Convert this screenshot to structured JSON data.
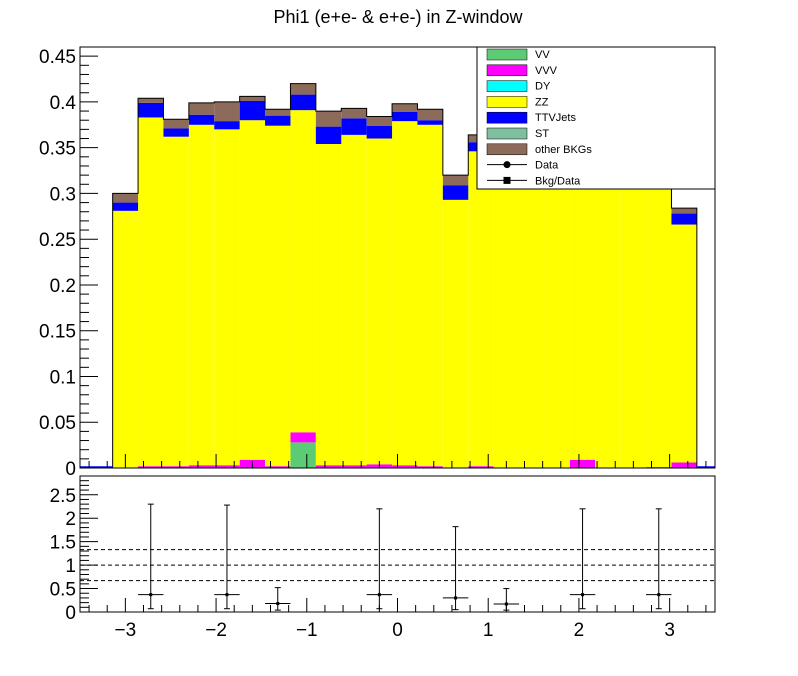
{
  "chart_data": {
    "type": "bar",
    "title": "Phi1 (e+e- & e+e-) in Z-window",
    "x_bin_edges": [
      -3.14,
      -2.86,
      -2.58,
      -2.3,
      -2.02,
      -1.74,
      -1.46,
      -1.18,
      -0.9,
      -0.62,
      -0.34,
      -0.06,
      0.22,
      0.5,
      0.78,
      1.06,
      1.34,
      1.62,
      1.9,
      2.18,
      2.46,
      2.74,
      3.02,
      3.3
    ],
    "xlim": [
      -3.5,
      3.5
    ],
    "ylim": [
      0,
      0.46
    ],
    "x_ticks": [
      "−3",
      "−2",
      "−1",
      "0",
      "1",
      "2",
      "3"
    ],
    "x_tick_values": [
      -3,
      -2,
      -1,
      0,
      1,
      2,
      3
    ],
    "y_ticks": [
      "0",
      "0.05",
      "0.1",
      "0.15",
      "0.2",
      "0.25",
      "0.3",
      "0.35",
      "0.4",
      "0.45"
    ],
    "y_tick_values": [
      0,
      0.05,
      0.1,
      0.15,
      0.2,
      0.25,
      0.3,
      0.35,
      0.4,
      0.45
    ],
    "stack_series": [
      {
        "name": "VV",
        "color": "#5bcc73",
        "values": [
          0,
          0,
          0,
          0,
          0,
          0,
          0,
          0.028,
          0,
          0,
          0,
          0,
          0,
          0,
          0,
          0,
          0,
          0,
          0,
          0,
          0,
          0,
          0
        ]
      },
      {
        "name": "VVV",
        "color": "#ff00ff",
        "values": [
          0,
          0.002,
          0.002,
          0.003,
          0.003,
          0.009,
          0.002,
          0.011,
          0.003,
          0.003,
          0.004,
          0.003,
          0.002,
          0,
          0.002,
          0,
          0,
          0,
          0.009,
          0,
          0,
          0.001,
          0.006
        ]
      },
      {
        "name": "DY",
        "color": "#00ffff",
        "values": [
          0,
          0,
          0,
          0,
          0,
          0,
          0,
          0,
          0,
          0,
          0,
          0,
          0,
          0,
          0,
          0,
          0,
          0,
          0,
          0,
          0,
          0,
          0
        ]
      },
      {
        "name": "ZZ",
        "color": "#ffff00",
        "values": [
          0.281,
          0.381,
          0.36,
          0.372,
          0.367,
          0.371,
          0.372,
          0.352,
          0.351,
          0.361,
          0.356,
          0.376,
          0.373,
          0.293,
          0.344,
          0.34,
          0.345,
          0.34,
          0.331,
          0.34,
          0.34,
          0.34,
          0.26
        ]
      },
      {
        "name": "TTVJets",
        "color": "#0000ff",
        "values": [
          0.009,
          0.016,
          0.009,
          0.011,
          0.009,
          0.021,
          0.011,
          0.017,
          0.019,
          0.018,
          0.014,
          0.01,
          0.005,
          0.016,
          0.01,
          0.01,
          0.01,
          0.01,
          0.01,
          0.01,
          0.01,
          0.01,
          0.012
        ]
      },
      {
        "name": "ST",
        "color": "#7fbf9f",
        "values": [
          0,
          0,
          0,
          0,
          0,
          0,
          0,
          0,
          0,
          0,
          0,
          0,
          0,
          0,
          0,
          0,
          0,
          0,
          0,
          0,
          0,
          0,
          0
        ]
      },
      {
        "name": "other BKGs",
        "color": "#8c6b5a",
        "values": [
          0.01,
          0.005,
          0.01,
          0.013,
          0.021,
          0.005,
          0.007,
          0.012,
          0.017,
          0.011,
          0.01,
          0.009,
          0.012,
          0.011,
          0.008,
          0.01,
          0.01,
          0.01,
          0.01,
          0.01,
          0.01,
          0.01,
          0.006
        ]
      }
    ],
    "legend": [
      {
        "name": "VV",
        "kind": "box",
        "color": "#5bcc73"
      },
      {
        "name": "VVV",
        "kind": "box",
        "color": "#ff00ff"
      },
      {
        "name": "DY",
        "kind": "box",
        "color": "#00ffff"
      },
      {
        "name": "ZZ",
        "kind": "box",
        "color": "#ffff00"
      },
      {
        "name": "TTVJets",
        "kind": "box",
        "color": "#0000ff"
      },
      {
        "name": "ST",
        "kind": "box",
        "color": "#7fbf9f"
      },
      {
        "name": "other BKGs",
        "kind": "box",
        "color": "#8c6b5a"
      },
      {
        "name": "Data",
        "kind": "circle",
        "color": "#000000"
      },
      {
        "name": "Bkg/Data",
        "kind": "square",
        "color": "#000000"
      }
    ],
    "legend_placement": "top-right",
    "ratio": {
      "ylim": [
        0,
        2.9
      ],
      "y_ticks": [
        "0",
        "0.5",
        "1",
        "1.5",
        "2",
        "2.5"
      ],
      "y_tick_values": [
        0,
        0.5,
        1,
        1.5,
        2,
        2.5
      ],
      "reference_lines": [
        0.67,
        1.0,
        1.33
      ],
      "points": [
        {
          "x": -2.72,
          "y": 0.37,
          "xerr": 0.14,
          "ylo": 0.07,
          "yhi": 2.3
        },
        {
          "x": -1.88,
          "y": 0.37,
          "xerr": 0.14,
          "ylo": 0.07,
          "yhi": 2.28
        },
        {
          "x": -1.32,
          "y": 0.18,
          "xerr": 0.14,
          "ylo": 0.04,
          "yhi": 0.52
        },
        {
          "x": -0.2,
          "y": 0.37,
          "xerr": 0.14,
          "ylo": 0.07,
          "yhi": 2.2
        },
        {
          "x": 0.64,
          "y": 0.3,
          "xerr": 0.14,
          "ylo": 0.05,
          "yhi": 1.82
        },
        {
          "x": 1.2,
          "y": 0.17,
          "xerr": 0.14,
          "ylo": 0.04,
          "yhi": 0.5
        },
        {
          "x": 2.04,
          "y": 0.37,
          "xerr": 0.14,
          "ylo": 0.07,
          "yhi": 2.2
        },
        {
          "x": 2.88,
          "y": 0.37,
          "xerr": 0.14,
          "ylo": 0.07,
          "yhi": 2.2
        }
      ]
    }
  }
}
